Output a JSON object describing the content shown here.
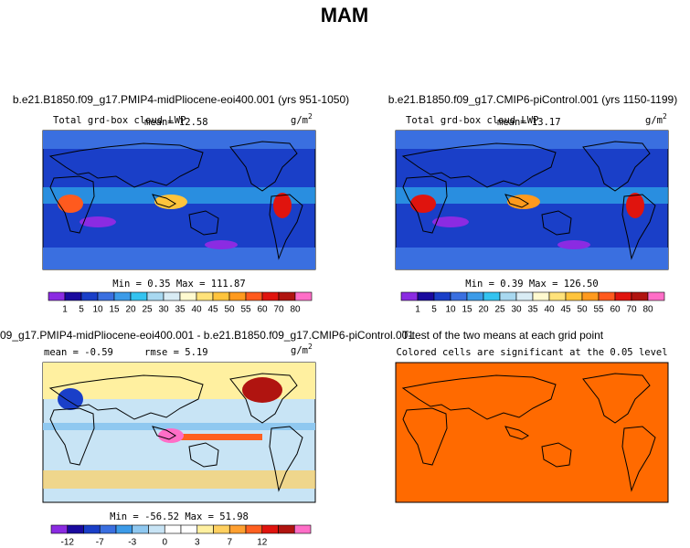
{
  "title": "MAM",
  "panels": [
    {
      "case": "b.e21.B1850.f09_g17.PMIP4-midPliocene-eoi400.001 (yrs 951-1050)",
      "variable": "Total grd-box cloud LWP",
      "mean": "mean=   12.58",
      "units": "g/m",
      "units_power": "2",
      "stats": "Min =   0.35 Max = 111.87"
    },
    {
      "case": "b.e21.B1850.f09_g17.CMIP6-piControl.001 (yrs 1150-1199)",
      "variable": "Total grd-box cloud LWP",
      "mean": "mean=   13.17",
      "units": "g/m",
      "units_power": "2",
      "stats": "Min =   0.39 Max = 126.50"
    },
    {
      "case": "09_g17.PMIP4-midPliocene-eoi400.001 - b.e21.B1850.f09_g17.CMIP6-piControl.001",
      "mean": "mean =  -0.59",
      "rmse": "rmse =    5.19",
      "units": "g/m",
      "units_power": "2",
      "stats": "Min = -56.52 Max = 51.98"
    },
    {
      "case": "T-test of the two means at each grid point",
      "note": "Colored cells are significant at the 0.05 level"
    }
  ],
  "colorbar_abs": {
    "labels": [
      "1",
      "5",
      "10",
      "15",
      "20",
      "25",
      "30",
      "35",
      "40",
      "45",
      "50",
      "55",
      "60",
      "70",
      "80"
    ],
    "colors": [
      "#8b2be2",
      "#1a0a9e",
      "#1a3fc8",
      "#3a6fe0",
      "#3c9be8",
      "#33c3f0",
      "#a8d8f0",
      "#d9ecf5",
      "#fffad0",
      "#ffe27a",
      "#ffc43c",
      "#ff9a1e",
      "#ff5a1e",
      "#e0140e",
      "#b01410",
      "#ff6ec7"
    ]
  },
  "colorbar_diff": {
    "labels": [
      "-12",
      "-7",
      "-3",
      "0",
      "3",
      "7",
      "12"
    ],
    "colors": [
      "#8b2be2",
      "#1a0a9e",
      "#1a3fc8",
      "#3a6fe0",
      "#3c9be8",
      "#8fc8f0",
      "#c8e4f5",
      "#ffffff",
      "#ffffff",
      "#fff0a0",
      "#ffd060",
      "#ffa030",
      "#ff6020",
      "#e0140e",
      "#b01410",
      "#ff6ec7"
    ]
  }
}
